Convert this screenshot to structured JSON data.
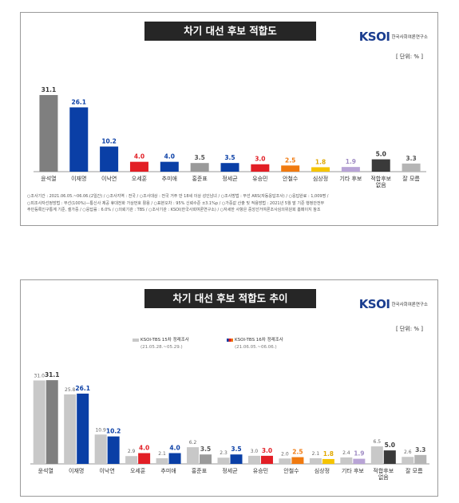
{
  "panel1": {
    "title": "차기 대선 후보 적합도",
    "logo_mark": "KSOI",
    "logo_sub": "한국사회여론연구소",
    "unit": "[ 단위: % ]",
    "footnote_lines": [
      "○조사기간 : 2021.06.05.~06.06.(2일간)  / ○조사지역 : 전국  / ○조사대상 : 전국 거주 만 18세 이상 성인남녀  / ○조사방법 : 무선 ARS(자동응답조사)  / ○응답완료 : 1,009명 /",
      "○피조사자선정방법 : 무선(100%)—통신사 제공 휴대전화 가상번호 활용  / ○표본오차 : 95% 신뢰수준 ±3.1%p  / ○가중값 산출 및 적용방법 : 2021년 5월 말 기준 행정안전부",
      "주민등록인구통계 기준, 셀가중  / ○응답률 : 6.0%  / ○의뢰기관 : TBS  / ○조사기관 : KSOI(한국사회여론연구소)  / ○자세한 사항은 중앙선거여론조사심의위원회 홈페이지 참조"
    ]
  },
  "panel2": {
    "title": "차기 대선 후보 적합도 추이",
    "logo_mark": "KSOI",
    "logo_sub": "한국사회여론연구소",
    "unit": "[ 단위: % ]",
    "legend": [
      {
        "label": "KSOI-TBS 15차 정례조사",
        "period": "(21.05.28.~05.29.)"
      },
      {
        "label": "KSOI-TBS 16차 정례조사",
        "period": "(21.06.05.~06.06.)"
      }
    ]
  },
  "colors": {
    "gray_dark": "#7f7f7f",
    "blue": "#0a3fa6",
    "red": "#e21e25",
    "orange": "#f07a10",
    "yellow": "#f5c400",
    "lavender": "#b8a4d6",
    "black": "#3a3a3a",
    "prev": "#c8c8c8"
  },
  "chart_data": [
    {
      "type": "bar",
      "title": "차기 대선 후보 적합도",
      "categories": [
        "윤석열",
        "이재명",
        "이낙연",
        "오세훈",
        "추미애",
        "홍준표",
        "정세균",
        "유승민",
        "안철수",
        "심상정",
        "기타 후보",
        "적합후보 없음",
        "잘 모름"
      ],
      "values": [
        31.1,
        26.1,
        10.2,
        4.0,
        4.0,
        3.5,
        3.5,
        3.0,
        2.5,
        1.8,
        1.9,
        5.0,
        3.3
      ],
      "bar_colors": [
        "#7f7f7f",
        "#0a3fa6",
        "#0a3fa6",
        "#e21e25",
        "#0a3fa6",
        "#9a9a9a",
        "#0a3fa6",
        "#e21e25",
        "#f07a10",
        "#f5c400",
        "#b8a4d6",
        "#3a3a3a",
        "#b5b5b5"
      ],
      "label_colors": [
        "#3a3a3a",
        "#0a3fa6",
        "#0a3fa6",
        "#e21e25",
        "#0a3fa6",
        "#555555",
        "#0a3fa6",
        "#e21e25",
        "#f07a10",
        "#e0a800",
        "#a08cc4",
        "#3a3a3a",
        "#555555"
      ],
      "ylim": [
        0,
        35
      ]
    },
    {
      "type": "bar",
      "title": "차기 대선 후보 적합도 추이",
      "categories": [
        "윤석열",
        "이재명",
        "이낙연",
        "오세훈",
        "추미애",
        "홍준표",
        "정세균",
        "유승민",
        "안철수",
        "심상정",
        "기타 후보",
        "적합후보 없음",
        "잘 모름"
      ],
      "series": [
        {
          "name": "KSOI-TBS 15차 정례조사",
          "values": [
            31.0,
            25.8,
            10.9,
            2.9,
            2.1,
            6.2,
            2.3,
            3.0,
            2.0,
            2.1,
            2.4,
            6.5,
            2.6
          ]
        },
        {
          "name": "KSOI-TBS 16차 정례조사",
          "values": [
            31.1,
            26.1,
            10.2,
            4.0,
            4.0,
            3.5,
            3.5,
            3.0,
            2.5,
            1.8,
            1.9,
            5.0,
            3.3
          ]
        }
      ],
      "bar_colors": [
        "#7f7f7f",
        "#0a3fa6",
        "#0a3fa6",
        "#e21e25",
        "#0a3fa6",
        "#9a9a9a",
        "#0a3fa6",
        "#e21e25",
        "#f07a10",
        "#f5c400",
        "#b8a4d6",
        "#3a3a3a",
        "#b5b5b5"
      ],
      "label_colors": [
        "#3a3a3a",
        "#0a3fa6",
        "#0a3fa6",
        "#e21e25",
        "#0a3fa6",
        "#555555",
        "#0a3fa6",
        "#e21e25",
        "#f07a10",
        "#e0a800",
        "#a08cc4",
        "#3a3a3a",
        "#555555"
      ],
      "ylim": [
        0,
        35
      ]
    }
  ]
}
